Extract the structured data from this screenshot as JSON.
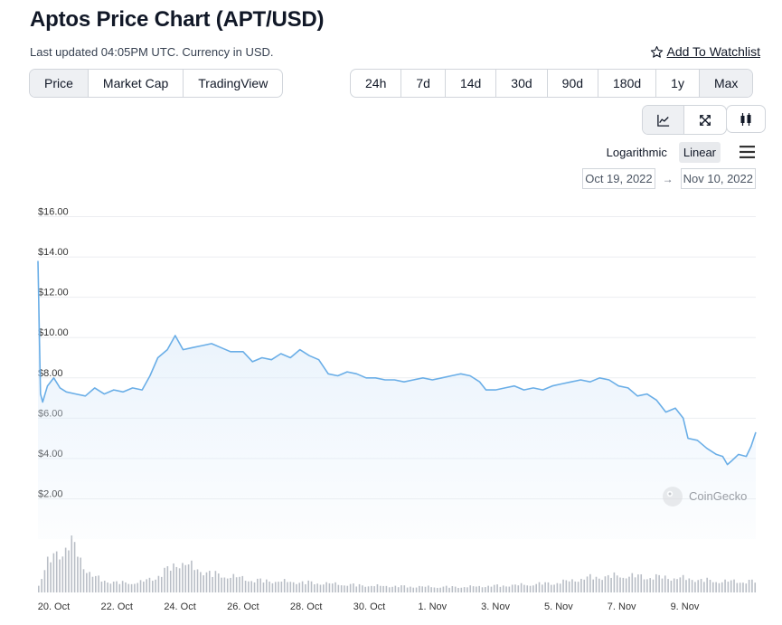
{
  "header": {
    "title": "Aptos Price Chart (APT/USD)",
    "subtitle": "Last updated 04:05PM UTC. Currency in USD.",
    "watchlist_label": "Add To Watchlist"
  },
  "metric_tabs": [
    {
      "label": "Price",
      "active": true
    },
    {
      "label": "Market Cap",
      "active": false
    },
    {
      "label": "TradingView",
      "active": false
    }
  ],
  "range_tabs": [
    {
      "label": "24h",
      "active": false
    },
    {
      "label": "7d",
      "active": false
    },
    {
      "label": "14d",
      "active": false
    },
    {
      "label": "30d",
      "active": false
    },
    {
      "label": "90d",
      "active": false
    },
    {
      "label": "180d",
      "active": false
    },
    {
      "label": "1y",
      "active": false
    },
    {
      "label": "Max",
      "active": true
    }
  ],
  "view_tabs": [
    {
      "icon": "line-chart-icon",
      "active": true
    },
    {
      "icon": "expand-icon",
      "active": false
    }
  ],
  "candlestick_icon": "candlestick-icon",
  "scale": {
    "logarithmic_label": "Logarithmic",
    "linear_label": "Linear",
    "active": "Linear"
  },
  "date_range": {
    "from": "Oct 19, 2022",
    "to": "Nov 10, 2022"
  },
  "colors": {
    "line": "#6aaee7",
    "area_top": "#dcebfa",
    "volume": "#b9bec6",
    "grid": "#eceef1",
    "axis_text": "#333333"
  },
  "chart_data": {
    "type": "line",
    "title": "",
    "xlabel": "",
    "ylabel": "",
    "ylim": [
      0,
      16
    ],
    "y_ticks": [
      {
        "value": 2,
        "label": "$2.00"
      },
      {
        "value": 4,
        "label": "$4.00"
      },
      {
        "value": 6,
        "label": "$6.00"
      },
      {
        "value": 8,
        "label": "$8.00"
      },
      {
        "value": 10,
        "label": "$10.00"
      },
      {
        "value": 12,
        "label": "$12.00"
      },
      {
        "value": 14,
        "label": "$14.00"
      },
      {
        "value": 16,
        "label": "$16.00"
      }
    ],
    "x_ticks": [
      {
        "day": 0.5,
        "label": "20. Oct"
      },
      {
        "day": 2.5,
        "label": "22. Oct"
      },
      {
        "day": 4.5,
        "label": "24. Oct"
      },
      {
        "day": 6.5,
        "label": "26. Oct"
      },
      {
        "day": 8.5,
        "label": "28. Oct"
      },
      {
        "day": 10.5,
        "label": "30. Oct"
      },
      {
        "day": 12.5,
        "label": "1. Nov"
      },
      {
        "day": 14.5,
        "label": "3. Nov"
      },
      {
        "day": 16.5,
        "label": "5. Nov"
      },
      {
        "day": 18.5,
        "label": "7. Nov"
      },
      {
        "day": 20.5,
        "label": "9. Nov"
      }
    ],
    "series": [
      {
        "values": [
          [
            0.0,
            13.8
          ],
          [
            0.08,
            7.2
          ],
          [
            0.15,
            6.8
          ],
          [
            0.3,
            7.6
          ],
          [
            0.5,
            8.0
          ],
          [
            0.7,
            7.5
          ],
          [
            0.9,
            7.3
          ],
          [
            1.2,
            7.2
          ],
          [
            1.5,
            7.1
          ],
          [
            1.8,
            7.5
          ],
          [
            2.1,
            7.2
          ],
          [
            2.4,
            7.4
          ],
          [
            2.7,
            7.3
          ],
          [
            3.0,
            7.5
          ],
          [
            3.3,
            7.4
          ],
          [
            3.55,
            8.1
          ],
          [
            3.8,
            9.0
          ],
          [
            4.1,
            9.4
          ],
          [
            4.35,
            10.1
          ],
          [
            4.6,
            9.4
          ],
          [
            4.9,
            9.5
          ],
          [
            5.2,
            9.6
          ],
          [
            5.5,
            9.7
          ],
          [
            5.8,
            9.5
          ],
          [
            6.1,
            9.3
          ],
          [
            6.5,
            9.3
          ],
          [
            6.8,
            8.8
          ],
          [
            7.1,
            9.0
          ],
          [
            7.4,
            8.9
          ],
          [
            7.7,
            9.2
          ],
          [
            8.0,
            9.0
          ],
          [
            8.3,
            9.4
          ],
          [
            8.6,
            9.1
          ],
          [
            8.9,
            8.9
          ],
          [
            9.2,
            8.2
          ],
          [
            9.5,
            8.1
          ],
          [
            9.8,
            8.3
          ],
          [
            10.1,
            8.2
          ],
          [
            10.4,
            8.0
          ],
          [
            10.7,
            8.0
          ],
          [
            11.0,
            7.9
          ],
          [
            11.3,
            7.9
          ],
          [
            11.6,
            7.8
          ],
          [
            11.9,
            7.9
          ],
          [
            12.2,
            8.0
          ],
          [
            12.5,
            7.9
          ],
          [
            12.8,
            8.0
          ],
          [
            13.1,
            8.1
          ],
          [
            13.4,
            8.2
          ],
          [
            13.7,
            8.1
          ],
          [
            14.0,
            7.8
          ],
          [
            14.2,
            7.4
          ],
          [
            14.5,
            7.4
          ],
          [
            14.8,
            7.5
          ],
          [
            15.1,
            7.6
          ],
          [
            15.4,
            7.4
          ],
          [
            15.7,
            7.5
          ],
          [
            16.0,
            7.4
          ],
          [
            16.3,
            7.6
          ],
          [
            16.6,
            7.7
          ],
          [
            16.9,
            7.8
          ],
          [
            17.2,
            7.9
          ],
          [
            17.5,
            7.8
          ],
          [
            17.8,
            8.0
          ],
          [
            18.1,
            7.9
          ],
          [
            18.4,
            7.6
          ],
          [
            18.7,
            7.5
          ],
          [
            19.0,
            7.1
          ],
          [
            19.3,
            7.2
          ],
          [
            19.6,
            6.9
          ],
          [
            19.9,
            6.3
          ],
          [
            20.2,
            6.5
          ],
          [
            20.45,
            6.0
          ],
          [
            20.6,
            5.0
          ],
          [
            20.9,
            4.9
          ],
          [
            21.2,
            4.5
          ],
          [
            21.5,
            4.2
          ],
          [
            21.7,
            4.1
          ],
          [
            21.85,
            3.7
          ],
          [
            22.0,
            3.9
          ],
          [
            22.2,
            4.2
          ],
          [
            22.45,
            4.1
          ],
          [
            22.6,
            4.6
          ],
          [
            22.75,
            5.3
          ]
        ]
      }
    ],
    "volume": {
      "shape": [
        [
          0.0,
          0.15
        ],
        [
          0.3,
          0.55
        ],
        [
          0.6,
          0.7
        ],
        [
          0.9,
          0.85
        ],
        [
          1.0,
          0.95
        ],
        [
          1.15,
          0.8
        ],
        [
          1.4,
          0.5
        ],
        [
          1.7,
          0.3
        ],
        [
          2.0,
          0.22
        ],
        [
          2.6,
          0.17
        ],
        [
          3.2,
          0.18
        ],
        [
          3.6,
          0.25
        ],
        [
          4.0,
          0.38
        ],
        [
          4.5,
          0.55
        ],
        [
          5.0,
          0.42
        ],
        [
          5.6,
          0.32
        ],
        [
          6.2,
          0.28
        ],
        [
          6.8,
          0.22
        ],
        [
          7.5,
          0.2
        ],
        [
          8.5,
          0.18
        ],
        [
          9.5,
          0.15
        ],
        [
          10.5,
          0.12
        ],
        [
          11.5,
          0.11
        ],
        [
          12.5,
          0.1
        ],
        [
          13.5,
          0.1
        ],
        [
          14.5,
          0.12
        ],
        [
          15.5,
          0.14
        ],
        [
          16.5,
          0.18
        ],
        [
          17.5,
          0.27
        ],
        [
          18.5,
          0.3
        ],
        [
          19.5,
          0.28
        ],
        [
          20.5,
          0.25
        ],
        [
          21.5,
          0.2
        ],
        [
          22.75,
          0.2
        ]
      ]
    },
    "grid": true,
    "watermark": "CoinGecko"
  }
}
